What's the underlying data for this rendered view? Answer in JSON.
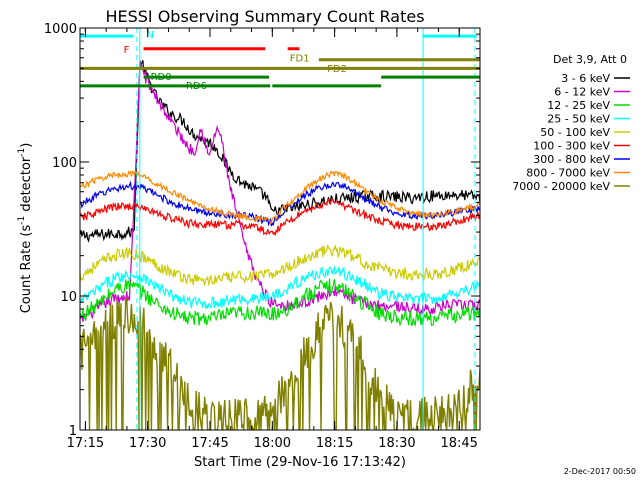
{
  "chart_data": {
    "type": "line",
    "title": "HESSI Observing Summary Count Rates",
    "xlabel": "Start Time (29-Nov-16 17:13:42)",
    "ylabel_parts": [
      "Count Rate (s",
      "-1",
      " detector",
      "-1",
      ")"
    ],
    "yscale": "log",
    "ylim": [
      1,
      1000
    ],
    "xlim_minutes": [
      0,
      96.3
    ],
    "x_ticks": [
      {
        "t": 1.3,
        "label": "17:15"
      },
      {
        "t": 16.3,
        "label": "17:30"
      },
      {
        "t": 31.3,
        "label": "17:45"
      },
      {
        "t": 46.3,
        "label": "18:00"
      },
      {
        "t": 61.3,
        "label": "18:15"
      },
      {
        "t": 76.3,
        "label": "18:30"
      },
      {
        "t": 91.3,
        "label": "18:45"
      }
    ],
    "y_ticks": [
      {
        "v": 1,
        "label": "1"
      },
      {
        "v": 10,
        "label": "10"
      },
      {
        "v": 100,
        "label": "100"
      },
      {
        "v": 1000,
        "label": "1000"
      }
    ],
    "legend_header": "Det 3,9, Att 0",
    "legend_placement": "right",
    "series": [
      {
        "name": "3 - 6 keV",
        "color": "#000000",
        "points": [
          [
            0,
            28
          ],
          [
            7,
            29
          ],
          [
            13,
            30
          ],
          [
            14.5,
            600
          ],
          [
            15.5,
            480
          ],
          [
            18,
            320
          ],
          [
            20,
            260
          ],
          [
            22,
            230
          ],
          [
            25,
            200
          ],
          [
            27,
            165
          ],
          [
            29,
            150
          ],
          [
            31,
            140
          ],
          [
            33,
            125
          ],
          [
            34,
            110
          ],
          [
            35,
            97
          ],
          [
            37,
            80
          ],
          [
            39,
            70
          ],
          [
            41,
            66
          ],
          [
            43,
            60
          ],
          [
            44,
            57
          ],
          [
            45,
            55
          ],
          [
            46,
            42
          ],
          [
            50,
            45
          ],
          [
            55,
            48
          ],
          [
            60,
            52
          ],
          [
            65,
            54
          ],
          [
            70,
            56
          ],
          [
            75,
            55
          ],
          [
            80,
            54
          ],
          [
            85,
            56
          ],
          [
            90,
            57
          ],
          [
            96.3,
            55
          ]
        ]
      },
      {
        "name": "6 - 12 keV",
        "color": "#cc00cc",
        "points": [
          [
            0,
            6.5
          ],
          [
            4,
            8
          ],
          [
            8,
            9.5
          ],
          [
            12,
            10
          ],
          [
            14.5,
            560
          ],
          [
            16,
            410
          ],
          [
            19,
            280
          ],
          [
            22,
            200
          ],
          [
            24,
            160
          ],
          [
            26,
            130
          ],
          [
            27.5,
            118
          ],
          [
            29,
            178
          ],
          [
            30,
            150
          ],
          [
            31,
            105
          ],
          [
            32,
            140
          ],
          [
            33,
            182
          ],
          [
            34,
            150
          ],
          [
            35,
            100
          ],
          [
            36,
            68
          ],
          [
            38,
            38
          ],
          [
            40,
            22
          ],
          [
            42,
            15
          ],
          [
            44,
            11
          ],
          [
            46,
            9
          ],
          [
            50,
            8.5
          ],
          [
            54,
            9
          ],
          [
            58,
            10
          ],
          [
            61,
            11
          ],
          [
            64,
            10
          ],
          [
            68,
            9
          ],
          [
            72,
            8.5
          ],
          [
            76,
            8.5
          ],
          [
            80,
            8
          ],
          [
            84,
            8
          ],
          [
            88,
            8.5
          ],
          [
            92,
            8.5
          ],
          [
            96.3,
            8.5
          ]
        ]
      },
      {
        "name": "12 - 25 keV",
        "color": "#00dd00",
        "points": [
          [
            0,
            7
          ],
          [
            5,
            9
          ],
          [
            9,
            11.5
          ],
          [
            12,
            12
          ],
          [
            14.5,
            11
          ],
          [
            18,
            9
          ],
          [
            22,
            7.5
          ],
          [
            26,
            6.8
          ],
          [
            30,
            6.8
          ],
          [
            34,
            7
          ],
          [
            38,
            7.5
          ],
          [
            42,
            7.5
          ],
          [
            46,
            7.3
          ],
          [
            50,
            8
          ],
          [
            54,
            10
          ],
          [
            58,
            11.5
          ],
          [
            61,
            12
          ],
          [
            64,
            11
          ],
          [
            68,
            9
          ],
          [
            72,
            7.5
          ],
          [
            76,
            7
          ],
          [
            80,
            6.8
          ],
          [
            84,
            6.8
          ],
          [
            88,
            7
          ],
          [
            92,
            7.3
          ],
          [
            96.3,
            7.5
          ]
        ]
      },
      {
        "name": "25 - 50 keV",
        "color": "#00ffff",
        "points": [
          [
            0,
            9
          ],
          [
            4,
            11
          ],
          [
            8,
            13.5
          ],
          [
            12,
            14.5
          ],
          [
            14.5,
            14
          ],
          [
            18,
            12
          ],
          [
            22,
            10
          ],
          [
            26,
            9
          ],
          [
            30,
            8.8
          ],
          [
            34,
            9
          ],
          [
            38,
            9.5
          ],
          [
            42,
            9.5
          ],
          [
            46,
            10
          ],
          [
            50,
            11.5
          ],
          [
            54,
            13.5
          ],
          [
            58,
            15
          ],
          [
            61,
            15.5
          ],
          [
            64,
            14.5
          ],
          [
            68,
            12.5
          ],
          [
            72,
            10.5
          ],
          [
            76,
            9.8
          ],
          [
            80,
            9.5
          ],
          [
            84,
            9.5
          ],
          [
            88,
            10
          ],
          [
            92,
            11
          ],
          [
            96.3,
            12
          ]
        ]
      },
      {
        "name": "50 - 100 keV",
        "color": "#cccc00",
        "points": [
          [
            0,
            14
          ],
          [
            4,
            17
          ],
          [
            8,
            20
          ],
          [
            12,
            21
          ],
          [
            14.5,
            20
          ],
          [
            18,
            17.5
          ],
          [
            22,
            15
          ],
          [
            26,
            13.5
          ],
          [
            30,
            13
          ],
          [
            34,
            13.5
          ],
          [
            38,
            14
          ],
          [
            42,
            14
          ],
          [
            46,
            14.5
          ],
          [
            50,
            16.5
          ],
          [
            54,
            19
          ],
          [
            58,
            21.5
          ],
          [
            61,
            22
          ],
          [
            64,
            21
          ],
          [
            68,
            18
          ],
          [
            72,
            16
          ],
          [
            76,
            15
          ],
          [
            80,
            14.5
          ],
          [
            84,
            14.5
          ],
          [
            88,
            15
          ],
          [
            92,
            16.5
          ],
          [
            96.3,
            18
          ]
        ]
      },
      {
        "name": "100 - 300 keV",
        "color": "#ff0000",
        "points": [
          [
            0,
            38
          ],
          [
            4,
            42
          ],
          [
            8,
            46
          ],
          [
            12,
            47
          ],
          [
            14.5,
            46
          ],
          [
            18,
            42
          ],
          [
            22,
            38
          ],
          [
            26,
            35
          ],
          [
            30,
            34
          ],
          [
            34,
            34
          ],
          [
            38,
            34
          ],
          [
            42,
            33
          ],
          [
            46,
            29
          ],
          [
            50,
            36
          ],
          [
            54,
            43
          ],
          [
            58,
            48
          ],
          [
            61,
            50
          ],
          [
            64,
            47
          ],
          [
            68,
            41
          ],
          [
            72,
            36
          ],
          [
            76,
            34
          ],
          [
            80,
            33
          ],
          [
            84,
            33
          ],
          [
            88,
            34
          ],
          [
            92,
            37
          ],
          [
            96.3,
            40
          ]
        ]
      },
      {
        "name": "300 - 800 keV",
        "color": "#0000ee",
        "points": [
          [
            0,
            48
          ],
          [
            4,
            56
          ],
          [
            8,
            63
          ],
          [
            12,
            66
          ],
          [
            14.5,
            65
          ],
          [
            18,
            58
          ],
          [
            22,
            50
          ],
          [
            26,
            45
          ],
          [
            30,
            42
          ],
          [
            34,
            41
          ],
          [
            38,
            40
          ],
          [
            42,
            39
          ],
          [
            46,
            35
          ],
          [
            50,
            45
          ],
          [
            54,
            56
          ],
          [
            58,
            65
          ],
          [
            61,
            68
          ],
          [
            64,
            65
          ],
          [
            68,
            55
          ],
          [
            72,
            46
          ],
          [
            76,
            42
          ],
          [
            80,
            40
          ],
          [
            84,
            40
          ],
          [
            88,
            41
          ],
          [
            92,
            43
          ],
          [
            96.3,
            45
          ]
        ]
      },
      {
        "name": "800 - 7000 keV",
        "color": "#ff8800",
        "points": [
          [
            0,
            65
          ],
          [
            4,
            74
          ],
          [
            8,
            80
          ],
          [
            12,
            82
          ],
          [
            14.5,
            80
          ],
          [
            18,
            70
          ],
          [
            22,
            60
          ],
          [
            26,
            52
          ],
          [
            30,
            46
          ],
          [
            34,
            42
          ],
          [
            38,
            40
          ],
          [
            42,
            38
          ],
          [
            46,
            36
          ],
          [
            50,
            48
          ],
          [
            54,
            62
          ],
          [
            58,
            76
          ],
          [
            61,
            82
          ],
          [
            64,
            78
          ],
          [
            68,
            64
          ],
          [
            72,
            52
          ],
          [
            76,
            46
          ],
          [
            80,
            42
          ],
          [
            84,
            40
          ],
          [
            88,
            41
          ],
          [
            92,
            44
          ],
          [
            96.3,
            48
          ]
        ]
      },
      {
        "name": "7000 - 20000 keV",
        "color": "#808000",
        "points": [
          [
            0,
            3.8
          ],
          [
            4,
            5
          ],
          [
            8,
            6.5
          ],
          [
            11,
            7.5
          ],
          [
            14.5,
            6.8
          ],
          [
            18,
            4.5
          ],
          [
            22,
            3
          ],
          [
            25,
            2
          ],
          [
            27,
            1.5
          ],
          [
            30,
            1.3
          ],
          [
            34,
            1.2
          ],
          [
            38,
            1.2
          ],
          [
            42,
            1.25
          ],
          [
            46,
            1.4
          ],
          [
            50,
            2.2
          ],
          [
            54,
            3.6
          ],
          [
            57,
            5.2
          ],
          [
            60,
            6.5
          ],
          [
            63,
            6
          ],
          [
            66,
            4.5
          ],
          [
            69,
            3
          ],
          [
            72,
            2
          ],
          [
            75,
            1.6
          ],
          [
            78,
            1.3
          ],
          [
            82,
            1.25
          ],
          [
            86,
            1.3
          ],
          [
            90,
            1.5
          ],
          [
            94,
            2
          ],
          [
            96.3,
            2.5
          ]
        ]
      }
    ],
    "flag_bars": [
      {
        "label": "N",
        "color": "#00ffff",
        "ylevel": 870,
        "segments": [
          [
            0,
            12.8
          ],
          [
            82.5,
            95.5
          ]
        ]
      },
      {
        "label": "F",
        "color": "#ff0000",
        "ylevel": 700,
        "segments": [
          [
            15.3,
            44.6
          ],
          [
            50,
            52.8
          ]
        ]
      },
      {
        "label": "FD1",
        "color": "#808000",
        "ylevel": 580,
        "segments": [
          [
            57.5,
            96.3
          ]
        ]
      },
      {
        "label": "FD2",
        "color": "#808000",
        "ylevel": 500,
        "segments": [
          [
            0,
            96.3
          ]
        ]
      },
      {
        "label": "RD0",
        "color": "#008000",
        "ylevel": 430,
        "segments": [
          [
            15.3,
            45.5
          ],
          [
            72.5,
            96.3
          ]
        ]
      },
      {
        "label": "RD6",
        "color": "#008000",
        "ylevel": 370,
        "segments": [
          [
            0,
            45.8
          ],
          [
            46.3,
            72.5
          ]
        ]
      }
    ],
    "flag_labels": [
      {
        "text": "N",
        "color": "#00ffff",
        "t": 16,
        "y": 900
      },
      {
        "text": "F",
        "color": "#ff0000",
        "t": 10.5,
        "y": 700
      },
      {
        "text": "FD1",
        "color": "#808000",
        "t": 50.5,
        "y": 600
      },
      {
        "text": "FD2",
        "color": "#808000",
        "t": 59.5,
        "y": 505
      },
      {
        "text": "RD0",
        "color": "#008000",
        "t": 17,
        "y": 440
      },
      {
        "text": "RD6",
        "color": "#008000",
        "t": 25.5,
        "y": 375
      }
    ],
    "vlines_solid": [
      14.4,
      82.6
    ],
    "vlines_dashed": [
      13.7,
      95.1
    ],
    "vline_color": "#00ffff"
  },
  "footer": {
    "date_stamp": "2-Dec-2017 00:50"
  }
}
